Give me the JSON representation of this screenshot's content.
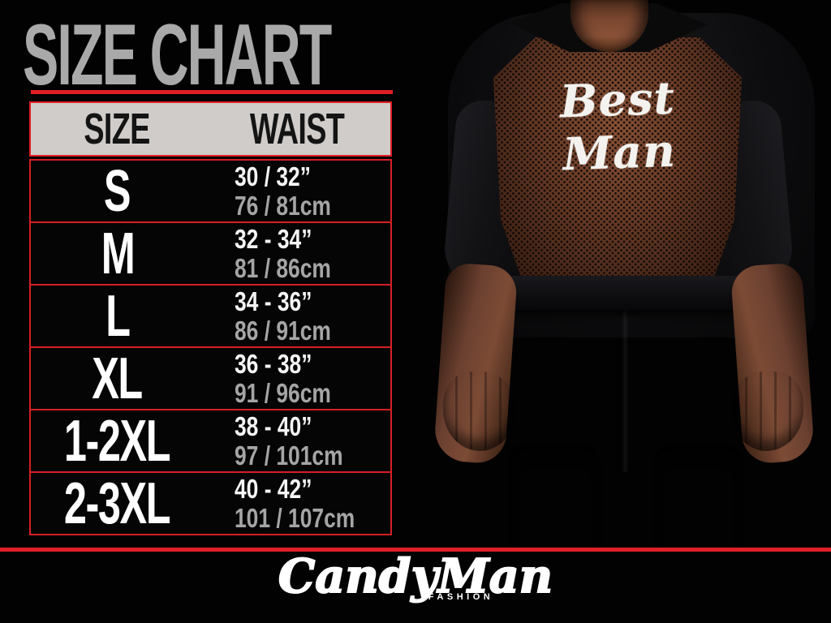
{
  "title": "SIZE CHART",
  "table": {
    "size_header": "SIZE",
    "waist_header": "WAIST",
    "rows": [
      {
        "size": "S",
        "inches": "30 / 32”",
        "cm": "76 / 81cm"
      },
      {
        "size": "M",
        "inches": "32 - 34”",
        "cm": "81 / 86cm"
      },
      {
        "size": "L",
        "inches": "34 - 36”",
        "cm": "86 / 91cm"
      },
      {
        "size": "XL",
        "inches": "36 - 38”",
        "cm": "91 / 96cm"
      },
      {
        "size": "1-2XL",
        "inches": "38 - 40”",
        "cm": "97 / 101cm"
      },
      {
        "size": "2-3XL",
        "inches": "40 - 42”",
        "cm": "101 / 107cm"
      }
    ]
  },
  "photo": {
    "garment_print": "Best Man"
  },
  "brand": {
    "name": "CandyMan",
    "tagline": "FASHION"
  },
  "colors": {
    "background": "#000000",
    "accent_red": "#e01f26",
    "title_gray": "#a9a9a9",
    "header_bg": "#cfccc9",
    "header_text": "#141414",
    "size_text": "#ffffff",
    "inches_text": "#f5f5f5",
    "cm_text": "#a5a5a5",
    "mesh_brown": "#6b4026",
    "skin_tone": "#7d5038"
  },
  "chart_data": {
    "type": "table",
    "title": "SIZE CHART",
    "columns": [
      "SIZE",
      "WAIST (inches)",
      "WAIST (cm)"
    ],
    "rows": [
      [
        "S",
        "30 / 32”",
        "76 / 81cm"
      ],
      [
        "M",
        "32 - 34”",
        "81 / 86cm"
      ],
      [
        "L",
        "34 - 36”",
        "86 / 91cm"
      ],
      [
        "XL",
        "36 - 38”",
        "91 / 96cm"
      ],
      [
        "1-2XL",
        "38 - 40”",
        "97 / 101cm"
      ],
      [
        "2-3XL",
        "40 - 42”",
        "101 / 107cm"
      ]
    ]
  }
}
